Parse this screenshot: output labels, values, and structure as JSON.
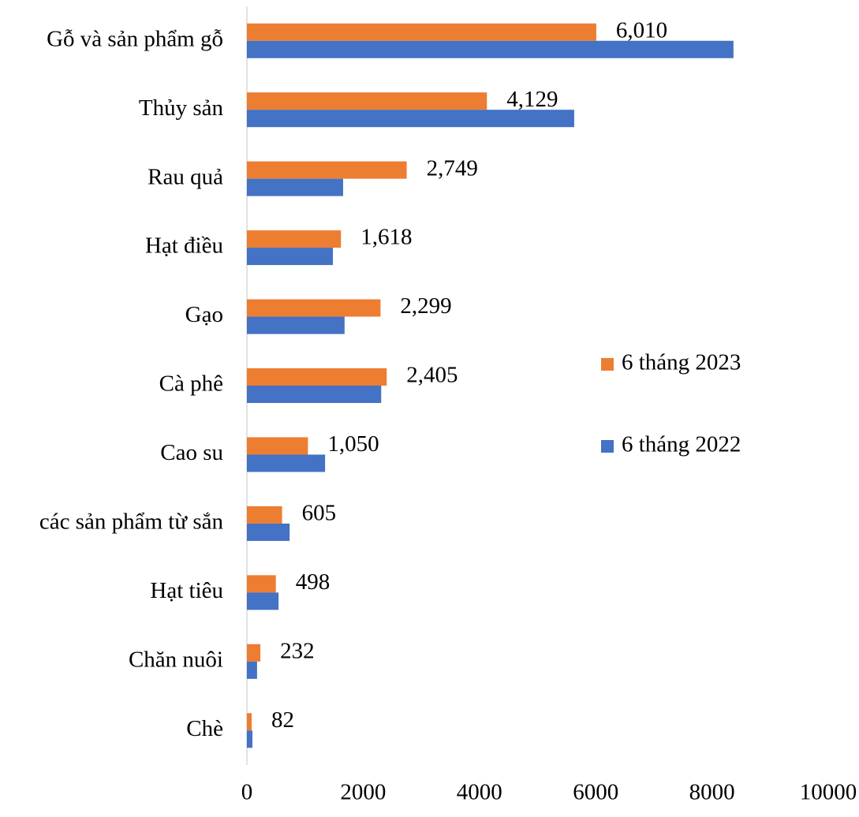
{
  "chart_data": {
    "type": "hbar",
    "categories": [
      "Gỗ và sản phẩm gỗ",
      "Thủy sản",
      "Rau quả",
      "Hạt điều",
      "Gạo",
      "Cà phê",
      "Cao su",
      "các sản phẩm từ sắn",
      "Hạt tiêu",
      "Chăn nuôi",
      "Chè"
    ],
    "series": [
      {
        "name": "6 tháng 2023",
        "color": "#ed7d31",
        "values": [
          6010,
          4129,
          2749,
          1618,
          2299,
          2405,
          1050,
          605,
          498,
          232,
          82
        ],
        "value_labels": [
          "6,010",
          "4,129",
          "2,749",
          "1,618",
          "2,299",
          "2,405",
          "1,050",
          "605",
          "498",
          "232",
          "82"
        ]
      },
      {
        "name": "6 tháng 2022",
        "color": "#4472c4",
        "values": [
          8370,
          5630,
          1655,
          1480,
          1680,
          2310,
          1345,
          735,
          545,
          175,
          95
        ]
      }
    ],
    "xlim": [
      0,
      10000
    ],
    "xticks": [
      0,
      2000,
      4000,
      6000,
      8000,
      10000
    ],
    "grid": false,
    "legend": "right"
  }
}
